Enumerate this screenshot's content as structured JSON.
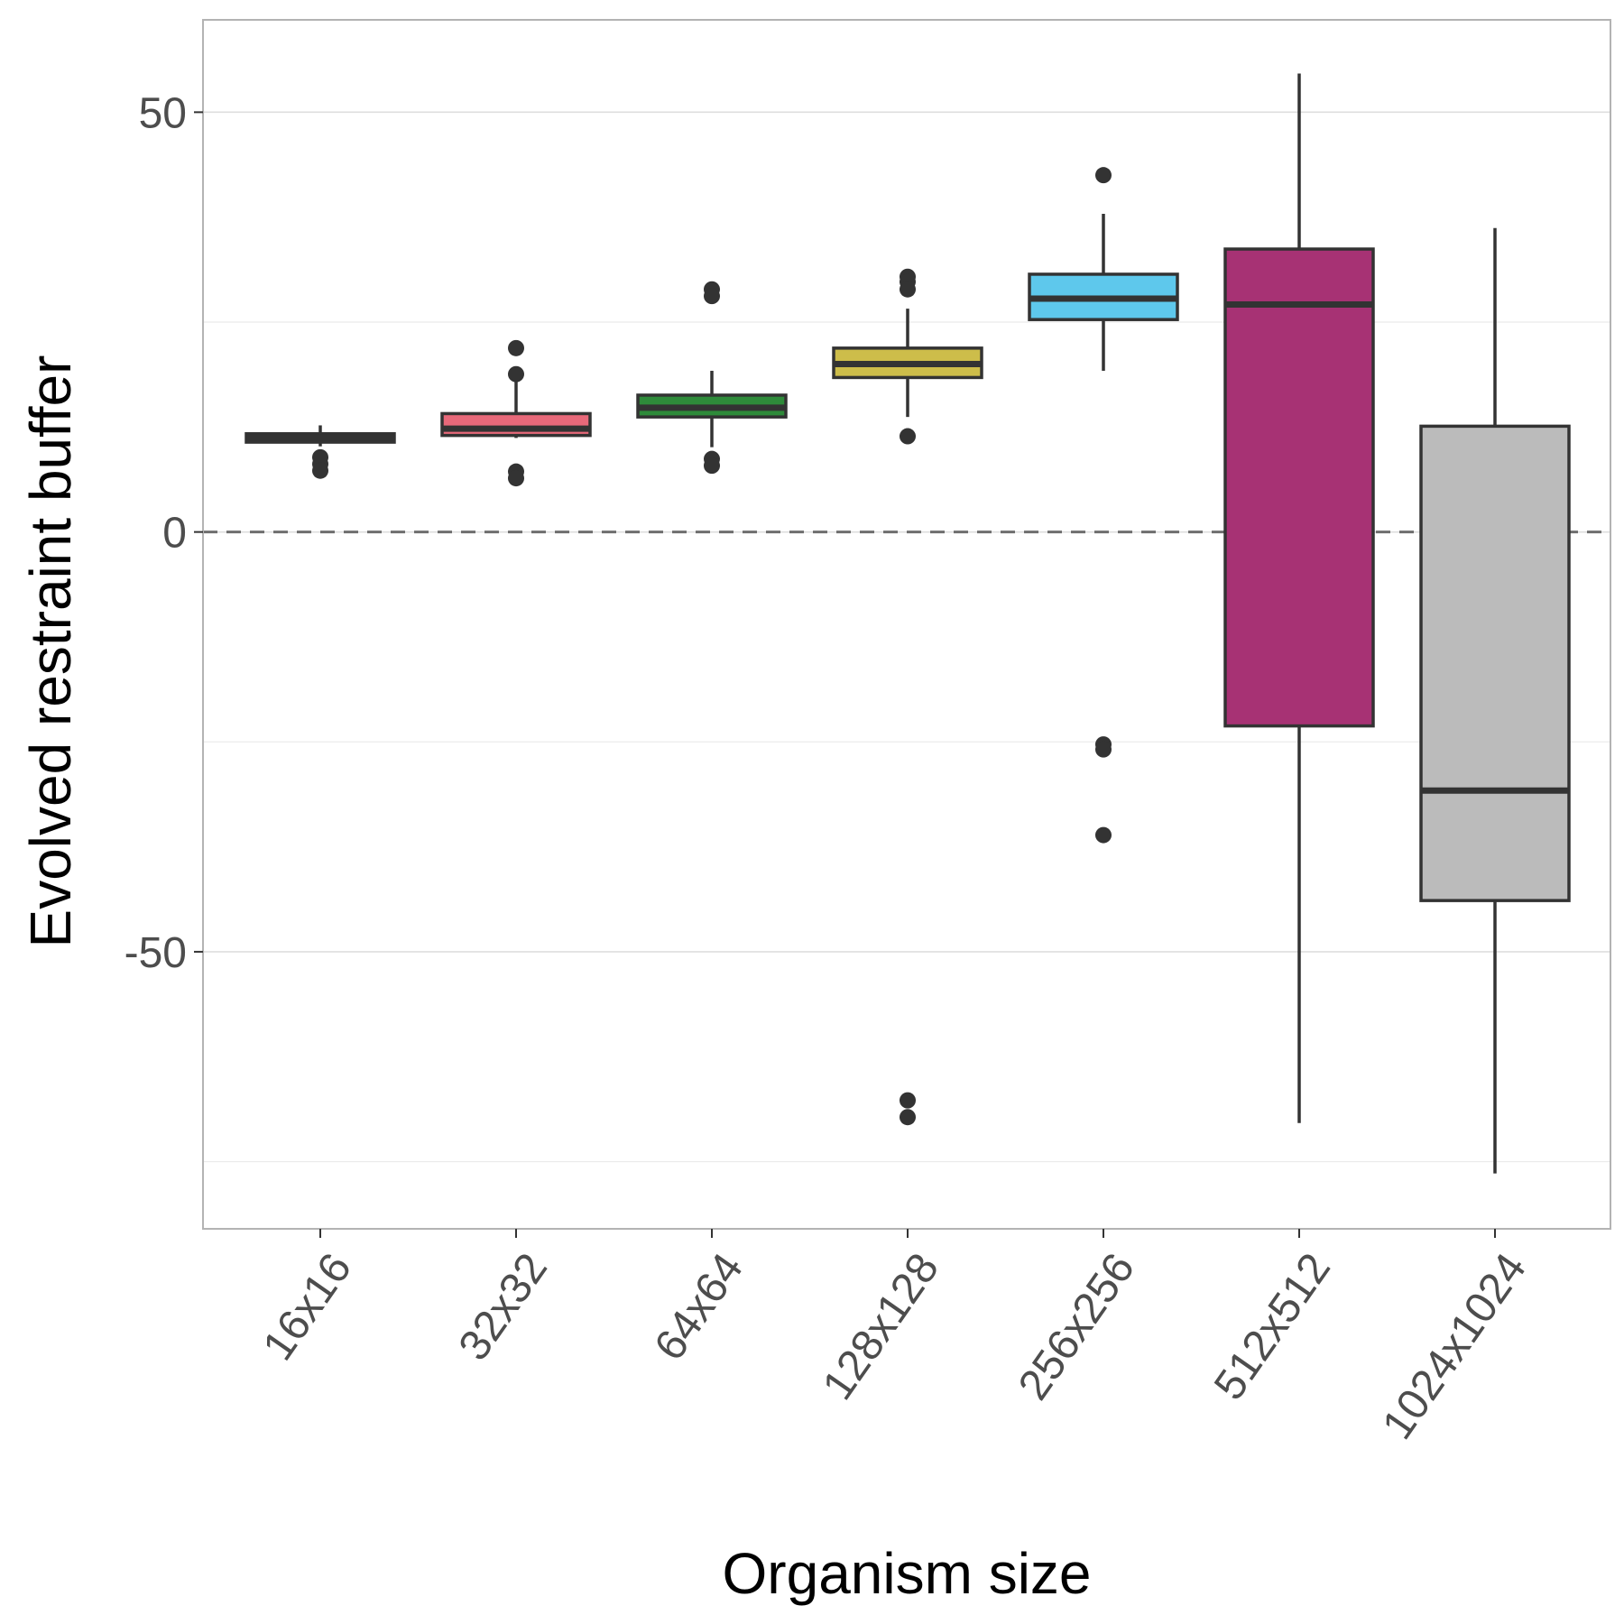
{
  "chart_data": {
    "type": "box",
    "title": "",
    "xlabel": "Organism size",
    "ylabel": "Evolved restraint buffer",
    "ylim": [
      -83,
      61
    ],
    "y_ticks": [
      -50,
      0,
      50
    ],
    "y_minor_gridlines": [
      -75,
      -25,
      25
    ],
    "reference_line": {
      "y": 0,
      "style": "dashed"
    },
    "grid": true,
    "legend": "none",
    "categories": [
      "16x16",
      "32x32",
      "64x64",
      "128x128",
      "256x256",
      "512x512",
      "1024x1024"
    ],
    "boxes": [
      {
        "category": "16x16",
        "color": "#404040",
        "min": 10.2,
        "q1": 10.7,
        "median": 11.2,
        "q3": 11.7,
        "max": 12.7,
        "outliers": [
          8.1,
          8.9,
          7.3
        ]
      },
      {
        "category": "32x32",
        "color": "#e8697a",
        "min": 11.2,
        "q1": 11.5,
        "median": 12.3,
        "q3": 14.1,
        "max": 18.2,
        "outliers": [
          21.9,
          18.8,
          7.2,
          6.4
        ]
      },
      {
        "category": "64x64",
        "color": "#2e8b3a",
        "min": 10.1,
        "q1": 13.7,
        "median": 14.8,
        "q3": 16.3,
        "max": 19.2,
        "outliers": [
          28.9,
          28.1,
          8.7,
          7.9
        ]
      },
      {
        "category": "128x128",
        "color": "#cdbd4a",
        "min": 13.7,
        "q1": 18.4,
        "median": 20.0,
        "q3": 21.9,
        "max": 26.6,
        "outliers": [
          30.4,
          29.8,
          28.9,
          11.4,
          -67.7,
          -69.7
        ]
      },
      {
        "category": "256x256",
        "color": "#5ec8ec",
        "min": 19.2,
        "q1": 25.3,
        "median": 27.8,
        "q3": 30.7,
        "max": 37.9,
        "outliers": [
          42.5,
          -25.3,
          -25.9,
          -36.1
        ]
      },
      {
        "category": "512x512",
        "color": "#a73274",
        "min": -70.4,
        "q1": -23.1,
        "median": 27.1,
        "q3": 33.7,
        "max": 54.6,
        "outliers": []
      },
      {
        "category": "1024x1024",
        "color": "#bbbbbb",
        "min": -76.4,
        "q1": -43.9,
        "median": -30.8,
        "q3": 12.6,
        "max": 36.2,
        "outliers": []
      }
    ]
  }
}
